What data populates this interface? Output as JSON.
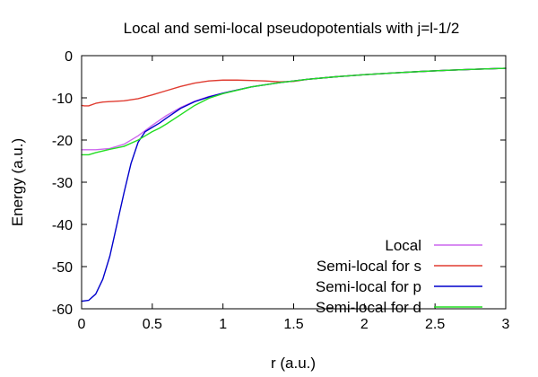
{
  "chart_data": {
    "type": "line",
    "title": "Local and semi-local pseudopotentials with j=l-1/2",
    "xlabel": "r (a.u.)",
    "ylabel": "Energy (a.u.)",
    "xlim": [
      0,
      3
    ],
    "ylim": [
      -60,
      0
    ],
    "xticks": [
      0,
      0.5,
      1,
      1.5,
      2,
      2.5,
      3
    ],
    "xtick_labels": [
      "0",
      "0.5",
      "1",
      "1.5",
      "2",
      "2.5",
      "3"
    ],
    "yticks": [
      -60,
      -50,
      -40,
      -30,
      -20,
      -10,
      0
    ],
    "ytick_labels": [
      "-60",
      "-50",
      "-40",
      "-30",
      "-20",
      "-10",
      "0"
    ],
    "grid": false,
    "legend_position": "bottom-right",
    "series": [
      {
        "name": "Local",
        "color": "#cc66ee",
        "x": [
          0,
          0.1,
          0.2,
          0.3,
          0.4,
          0.5,
          0.6,
          0.7,
          0.8,
          0.9,
          1.0,
          1.2,
          1.4,
          1.6,
          1.8,
          2.0,
          2.2,
          2.4,
          2.6,
          2.8,
          3.0
        ],
        "y": [
          -22.3,
          -22.3,
          -22.0,
          -21.0,
          -19.0,
          -16.5,
          -14.2,
          -12.3,
          -10.8,
          -9.7,
          -8.9,
          -7.4,
          -6.4,
          -5.6,
          -5.0,
          -4.5,
          -4.1,
          -3.75,
          -3.45,
          -3.2,
          -3.0
        ]
      },
      {
        "name": "Semi-local for s",
        "color": "#e03c31",
        "x": [
          0,
          0.02,
          0.05,
          0.1,
          0.15,
          0.2,
          0.3,
          0.4,
          0.5,
          0.6,
          0.7,
          0.8,
          0.9,
          1.0,
          1.1,
          1.2,
          1.3,
          1.4,
          1.5,
          1.6,
          1.8,
          2.0,
          2.2,
          2.4,
          2.6,
          2.8,
          3.0
        ],
        "y": [
          -11.8,
          -11.9,
          -11.9,
          -11.3,
          -11.0,
          -10.9,
          -10.7,
          -10.2,
          -9.3,
          -8.3,
          -7.3,
          -6.5,
          -6.0,
          -5.8,
          -5.8,
          -5.9,
          -6.0,
          -6.2,
          -6.1,
          -5.6,
          -5.0,
          -4.5,
          -4.1,
          -3.75,
          -3.45,
          -3.2,
          -3.0
        ]
      },
      {
        "name": "Semi-local for p",
        "color": "#0000cc",
        "x": [
          0,
          0.05,
          0.1,
          0.15,
          0.2,
          0.25,
          0.3,
          0.35,
          0.4,
          0.45,
          0.5,
          0.55,
          0.6,
          0.7,
          0.8,
          0.9,
          1.0,
          1.2,
          1.4,
          1.6,
          1.8,
          2.0,
          2.2,
          2.4,
          2.6,
          2.8,
          3.0
        ],
        "y": [
          -58.2,
          -58.0,
          -56.5,
          -53.0,
          -47.5,
          -40.0,
          -32.5,
          -25.5,
          -20.5,
          -18.0,
          -17.0,
          -16.0,
          -14.8,
          -12.5,
          -10.9,
          -9.8,
          -8.9,
          -7.4,
          -6.4,
          -5.6,
          -5.0,
          -4.5,
          -4.1,
          -3.75,
          -3.45,
          -3.2,
          -3.0
        ]
      },
      {
        "name": "Semi-local for d",
        "color": "#22dd22",
        "x": [
          0,
          0.05,
          0.1,
          0.2,
          0.3,
          0.4,
          0.45,
          0.5,
          0.55,
          0.6,
          0.7,
          0.8,
          0.9,
          1.0,
          1.2,
          1.4,
          1.6,
          1.8,
          2.0,
          2.2,
          2.4,
          2.6,
          2.8,
          3.0
        ],
        "y": [
          -23.5,
          -23.5,
          -23.0,
          -22.2,
          -21.5,
          -20.0,
          -19.0,
          -18.0,
          -17.2,
          -16.2,
          -14.0,
          -11.8,
          -10.1,
          -9.0,
          -7.4,
          -6.4,
          -5.6,
          -5.0,
          -4.5,
          -4.1,
          -3.75,
          -3.45,
          -3.2,
          -3.0
        ]
      }
    ]
  }
}
